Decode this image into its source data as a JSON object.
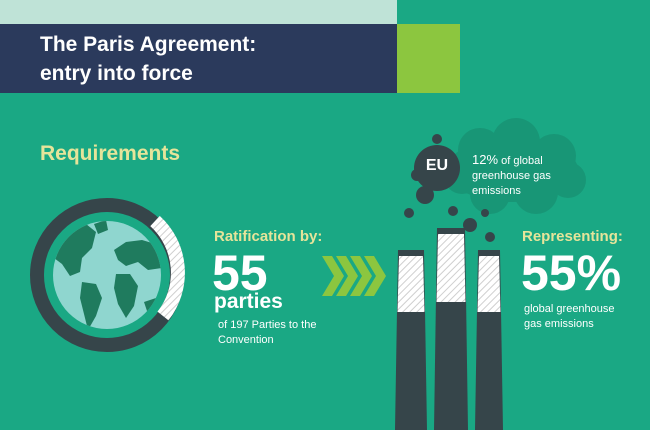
{
  "header": {
    "title_line1": "The Paris Agreement:",
    "title_line2": "entry into force"
  },
  "requirements": {
    "heading": "Requirements"
  },
  "ratification": {
    "label": "Ratification by:",
    "number": "55",
    "unit": "parties",
    "detail_line1": "of 197 Parties to the",
    "detail_line2": "Convention"
  },
  "eu_cloud": {
    "badge": "EU",
    "percent": "12%",
    "line1": "of global",
    "line2": "greenhouse gas",
    "line3": "emissions"
  },
  "representing": {
    "label": "Representing:",
    "number": "55%",
    "detail_line1": "global greenhouse",
    "detail_line2": "gas emissions"
  },
  "colors": {
    "background": "#1aa884",
    "title_bar": "#2b3a5c",
    "accent_green": "#8cc63f",
    "accent_yellow": "#e6e49a",
    "dark": "#36454a"
  }
}
